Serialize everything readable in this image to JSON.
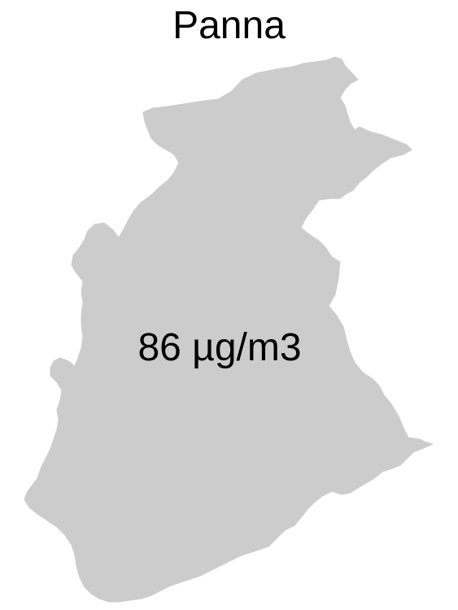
{
  "map": {
    "title": "Panna",
    "region_value_label": "86 µg/m3",
    "fill_color": "#cccccc",
    "background_color": "#ffffff",
    "text_color": "#000000"
  }
}
